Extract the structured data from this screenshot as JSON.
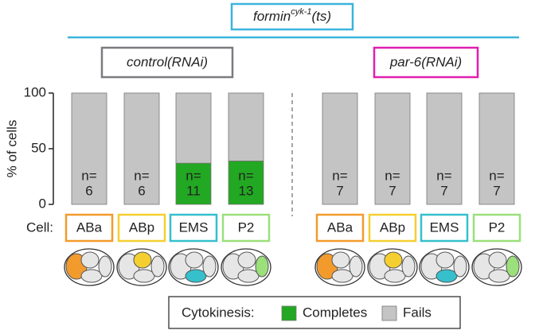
{
  "chart_data": {
    "type": "stacked_bar",
    "title": "formin",
    "title_sup": "cyk-1",
    "title_suffix": "(ts)",
    "title_color": "#3ab4dc",
    "groups": [
      {
        "label": "control(RNAi)",
        "color": "#7a7a80"
      },
      {
        "label": "par-6(RNAi)",
        "color": "#e01fb0"
      }
    ],
    "categories": [
      "ABa",
      "ABp",
      "EMS",
      "P2",
      "ABa",
      "ABp",
      "EMS",
      "P2"
    ],
    "category_colors": [
      "#f39a2c",
      "#f5cf30",
      "#35c0cc",
      "#9be07a",
      "#f39a2c",
      "#f5cf30",
      "#35c0cc",
      "#9be07a"
    ],
    "series": [
      {
        "name": "Completes",
        "color": "#22a822",
        "values": [
          0,
          0,
          37,
          39,
          0,
          0,
          0,
          0
        ]
      },
      {
        "name": "Fails",
        "color": "#c4c4c4",
        "values": [
          100,
          100,
          63,
          61,
          100,
          100,
          100,
          100
        ]
      }
    ],
    "n_prefix": "n=",
    "n": [
      6,
      6,
      11,
      13,
      7,
      7,
      7,
      7
    ],
    "ylabel": "% of cells",
    "ylim": [
      0,
      100
    ],
    "yticks": [
      0,
      50,
      100
    ],
    "row_label": "Cell:",
    "legend_title": "Cytokinesis:"
  }
}
